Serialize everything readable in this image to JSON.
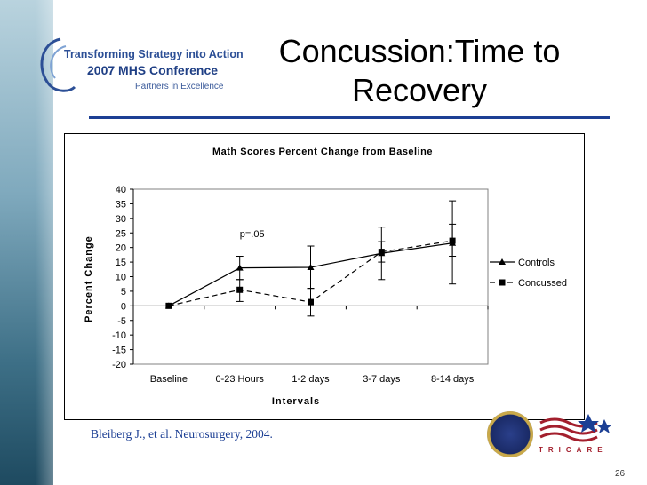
{
  "slide": {
    "title": "Concussion:Time to Recovery",
    "citation": "Bleiberg J.,  et al. Neurosurgery, 2004.",
    "page_number": "26"
  },
  "logo": {
    "line1": "Transforming Strategy into Action",
    "line2": "2007 MHS Conference",
    "line3": "Partners in Excellence"
  },
  "branding": {
    "tricare": "TRICARE"
  },
  "colors": {
    "accent": "#1c3f94",
    "tricare_red": "#a31f2d"
  },
  "chart_data": {
    "type": "line",
    "title": "Math Scores Percent Change from Baseline",
    "xlabel": "Intervals",
    "ylabel": "Percent Change",
    "categories": [
      "Baseline",
      "0-23 Hours",
      "1-2 days",
      "3-7 days",
      "8-14 days"
    ],
    "ylim": [
      -20,
      40
    ],
    "yticks": [
      -20,
      -15,
      -10,
      -5,
      0,
      5,
      10,
      15,
      20,
      25,
      30,
      35,
      40
    ],
    "annotation": {
      "text": "p=.05",
      "category": "0-23 Hours",
      "y": 23.5
    },
    "legend_position": "right",
    "series": [
      {
        "name": "Controls",
        "marker": "triangle",
        "line": "solid",
        "values": [
          0,
          13,
          13.2,
          18,
          21.5
        ],
        "error_low": [
          0,
          9,
          6,
          9,
          7.5
        ],
        "error_high": [
          0,
          17,
          20.5,
          27,
          28
        ]
      },
      {
        "name": "Concussed",
        "marker": "square",
        "line": "dashed",
        "values": [
          0,
          5.5,
          1.3,
          18.5,
          22.3
        ],
        "error_low": [
          0,
          1.5,
          -3.5,
          15,
          17
        ],
        "error_high": [
          0,
          9,
          6,
          22,
          36
        ]
      }
    ]
  }
}
